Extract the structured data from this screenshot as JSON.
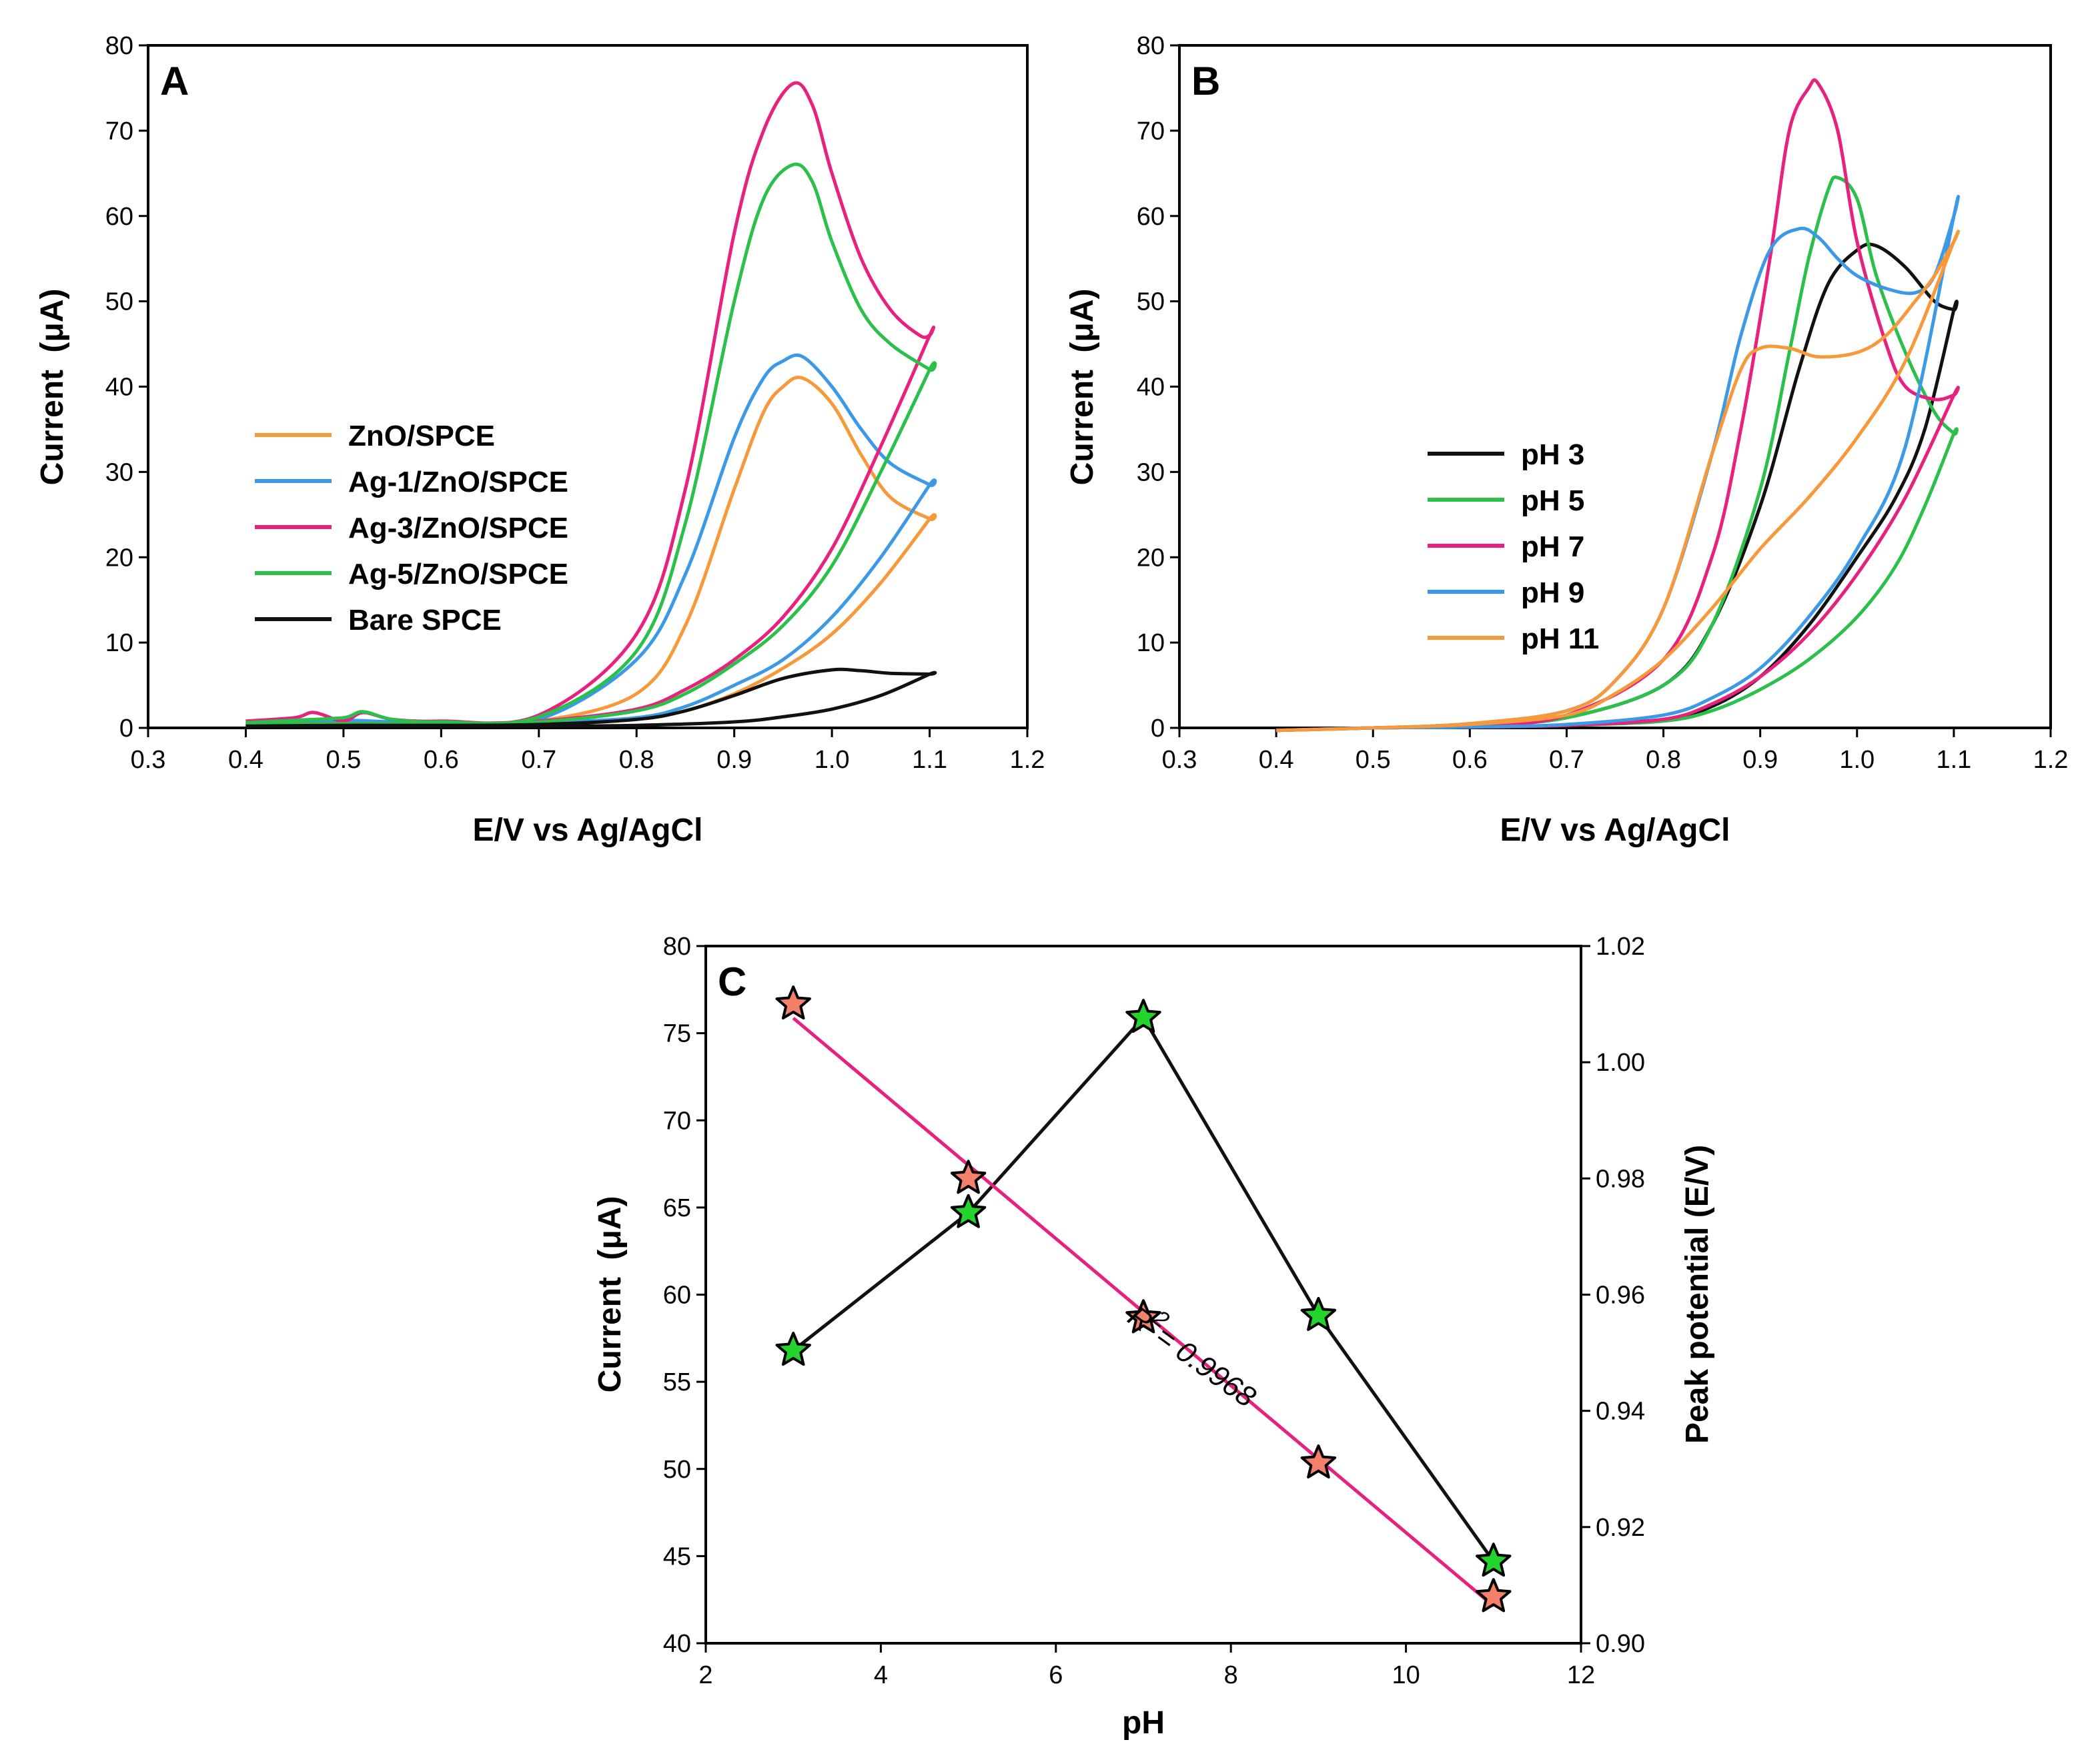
{
  "chart_data": [
    {
      "panel": "A",
      "type": "line",
      "title": "",
      "xlabel": "E/V vs Ag/AgCl",
      "ylabel_main": "Current",
      "ylabel_unit": "(μA)",
      "xlim": [
        0.3,
        1.2
      ],
      "ylim": [
        0,
        80
      ],
      "xticks": [
        "0.3",
        "0.4",
        "0.5",
        "0.6",
        "0.7",
        "0.8",
        "0.9",
        "1.0",
        "1.1",
        "1.2"
      ],
      "yticks": [
        "0",
        "10",
        "20",
        "30",
        "40",
        "50",
        "60",
        "70",
        "80"
      ],
      "legend_position": "center-left",
      "series": [
        {
          "name": "ZnO/SPCE",
          "color": "#f7993a",
          "x": [
            0.4,
            0.45,
            0.5,
            0.55,
            0.6,
            0.7,
            0.8,
            0.85,
            0.9,
            0.93,
            0.95,
            0.97,
            1.0,
            1.03,
            1.06,
            1.1,
            1.1,
            1.05,
            1.0,
            0.95,
            0.9,
            0.85,
            0.8,
            0.7,
            0.6,
            0.5,
            0.4
          ],
          "y": [
            0.4,
            0.6,
            0.8,
            0.6,
            0.5,
            0.8,
            4.0,
            12.0,
            28.0,
            37.0,
            40.0,
            41.0,
            38.0,
            32.0,
            27.0,
            24.5,
            24.5,
            17.0,
            11.0,
            7.0,
            4.0,
            2.0,
            1.0,
            0.5,
            0.3,
            0.3,
            0.3
          ]
        },
        {
          "name": "Ag-1/ZnO/SPCE",
          "color": "#3c99e8",
          "x": [
            0.4,
            0.45,
            0.5,
            0.55,
            0.6,
            0.7,
            0.8,
            0.85,
            0.9,
            0.93,
            0.95,
            0.97,
            1.0,
            1.03,
            1.06,
            1.1,
            1.1,
            1.05,
            1.0,
            0.95,
            0.9,
            0.85,
            0.8,
            0.7,
            0.6,
            0.5,
            0.4
          ],
          "y": [
            0.5,
            0.7,
            0.9,
            0.7,
            0.6,
            1.0,
            8.0,
            18.0,
            34.0,
            41.0,
            43.0,
            43.5,
            40.0,
            35.0,
            31.0,
            28.5,
            28.5,
            20.0,
            13.0,
            8.0,
            5.0,
            2.5,
            1.2,
            0.6,
            0.4,
            0.4,
            0.4
          ]
        },
        {
          "name": "Ag-3/ZnO/SPCE",
          "color": "#e8207e",
          "x": [
            0.4,
            0.45,
            0.47,
            0.5,
            0.52,
            0.55,
            0.6,
            0.7,
            0.8,
            0.85,
            0.9,
            0.93,
            0.96,
            0.98,
            1.0,
            1.03,
            1.06,
            1.09,
            1.1,
            1.1,
            1.05,
            1.0,
            0.95,
            0.9,
            0.85,
            0.8,
            0.7,
            0.6,
            0.5,
            0.4
          ],
          "y": [
            0.8,
            1.2,
            1.8,
            0.8,
            1.8,
            1.0,
            0.8,
            1.5,
            11.0,
            28.0,
            58.0,
            70.0,
            75.5,
            73.0,
            65.0,
            55.0,
            49.0,
            46.0,
            46.0,
            46.0,
            33.0,
            21.0,
            13.0,
            8.0,
            4.5,
            2.2,
            0.8,
            0.5,
            0.5,
            0.5
          ]
        },
        {
          "name": "Ag-5/ZnO/SPCE",
          "color": "#2bc04a",
          "x": [
            0.4,
            0.45,
            0.5,
            0.52,
            0.55,
            0.6,
            0.7,
            0.8,
            0.85,
            0.9,
            0.93,
            0.96,
            0.98,
            1.0,
            1.03,
            1.06,
            1.1,
            1.1,
            1.05,
            1.0,
            0.95,
            0.9,
            0.85,
            0.8,
            0.7,
            0.6,
            0.5,
            0.4
          ],
          "y": [
            0.6,
            0.9,
            1.2,
            1.9,
            1.0,
            0.7,
            1.3,
            9.0,
            24.0,
            50.0,
            62.0,
            66.0,
            64.0,
            57.0,
            49.0,
            45.0,
            42.0,
            42.0,
            30.0,
            19.0,
            12.0,
            7.5,
            4.0,
            2.0,
            0.7,
            0.5,
            0.5,
            0.5
          ]
        },
        {
          "name": "Bare SPCE",
          "color": "#111111",
          "x": [
            0.4,
            0.5,
            0.6,
            0.7,
            0.8,
            0.85,
            0.9,
            0.95,
            1.0,
            1.03,
            1.06,
            1.1,
            1.1,
            1.05,
            1.0,
            0.95,
            0.9,
            0.8,
            0.7,
            0.6,
            0.5,
            0.4
          ],
          "y": [
            0.2,
            0.3,
            0.3,
            0.4,
            1.0,
            2.0,
            3.8,
            5.8,
            6.8,
            6.7,
            6.4,
            6.3,
            6.3,
            3.8,
            2.2,
            1.3,
            0.7,
            0.3,
            0.2,
            0.2,
            0.2,
            0.2
          ]
        }
      ]
    },
    {
      "panel": "B",
      "type": "line",
      "title": "",
      "xlabel": "E/V vs Ag/AgCl",
      "ylabel_main": "Current",
      "ylabel_unit": "(μA)",
      "xlim": [
        0.3,
        1.2
      ],
      "ylim": [
        0,
        80
      ],
      "xticks": [
        "0.3",
        "0.4",
        "0.5",
        "0.6",
        "0.7",
        "0.8",
        "0.9",
        "1.0",
        "1.1",
        "1.2"
      ],
      "yticks": [
        "0",
        "10",
        "20",
        "30",
        "40",
        "50",
        "60",
        "70",
        "80"
      ],
      "legend_position": "center-left",
      "series": [
        {
          "name": "pH 3",
          "color": "#111111",
          "x": [
            0.4,
            0.5,
            0.6,
            0.7,
            0.8,
            0.85,
            0.9,
            0.94,
            0.97,
            1.0,
            1.02,
            1.05,
            1.08,
            1.1,
            1.1,
            1.07,
            1.04,
            1.0,
            0.95,
            0.9,
            0.85,
            0.8,
            0.7,
            0.6,
            0.5,
            0.4
          ],
          "y": [
            -0.3,
            0.0,
            0.3,
            1.2,
            5.0,
            12.0,
            26.0,
            42.0,
            52.0,
            56.0,
            56.5,
            54.0,
            50.0,
            49.0,
            49.0,
            35.0,
            27.0,
            20.0,
            12.0,
            6.0,
            2.5,
            1.0,
            0.3,
            0.1,
            0.0,
            -0.3
          ]
        },
        {
          "name": "pH 5",
          "color": "#2bc04a",
          "x": [
            0.4,
            0.5,
            0.6,
            0.7,
            0.8,
            0.85,
            0.9,
            0.93,
            0.95,
            0.97,
            0.98,
            1.0,
            1.02,
            1.05,
            1.08,
            1.1,
            1.1,
            1.07,
            1.04,
            1.0,
            0.95,
            0.9,
            0.85,
            0.8,
            0.7,
            0.6,
            0.5,
            0.4
          ],
          "y": [
            -0.3,
            0.0,
            0.3,
            1.2,
            5.0,
            12.0,
            28.0,
            44.0,
            55.0,
            63.0,
            64.5,
            62.0,
            53.0,
            44.0,
            37.0,
            34.5,
            34.5,
            26.0,
            19.0,
            13.0,
            8.0,
            4.5,
            2.0,
            0.8,
            0.3,
            0.1,
            0.0,
            -0.3
          ]
        },
        {
          "name": "pH 7",
          "color": "#e8207e",
          "x": [
            0.4,
            0.5,
            0.6,
            0.7,
            0.8,
            0.85,
            0.88,
            0.91,
            0.93,
            0.95,
            0.96,
            0.98,
            1.0,
            1.03,
            1.05,
            1.08,
            1.1,
            1.1,
            1.05,
            1.0,
            0.95,
            0.9,
            0.85,
            0.8,
            0.7,
            0.6,
            0.5,
            0.4
          ],
          "y": [
            -0.3,
            0.0,
            0.3,
            1.5,
            8.0,
            20.0,
            35.0,
            55.0,
            70.0,
            75.0,
            75.5,
            70.0,
            57.0,
            45.0,
            40.0,
            38.5,
            39.0,
            39.0,
            27.0,
            18.0,
            11.0,
            6.0,
            2.8,
            1.0,
            0.3,
            0.1,
            0.0,
            -0.3
          ]
        },
        {
          "name": "pH 9",
          "color": "#3c99e8",
          "x": [
            0.4,
            0.5,
            0.6,
            0.7,
            0.75,
            0.8,
            0.85,
            0.88,
            0.91,
            0.94,
            0.96,
            0.98,
            1.0,
            1.03,
            1.06,
            1.08,
            1.1,
            1.1,
            1.05,
            1.0,
            0.95,
            0.9,
            0.85,
            0.8,
            0.7,
            0.6,
            0.5,
            0.4
          ],
          "y": [
            -0.3,
            0.0,
            0.5,
            2.0,
            5.5,
            14.0,
            32.0,
            46.0,
            56.0,
            58.5,
            57.5,
            55.0,
            53.0,
            51.5,
            51.0,
            53.0,
            60.0,
            60.0,
            33.0,
            21.0,
            13.0,
            7.0,
            3.5,
            1.5,
            0.4,
            0.1,
            0.0,
            -0.3
          ]
        },
        {
          "name": "pH 11",
          "color": "#f7993a",
          "x": [
            0.4,
            0.5,
            0.6,
            0.7,
            0.75,
            0.8,
            0.85,
            0.88,
            0.9,
            0.93,
            0.96,
            1.0,
            1.03,
            1.06,
            1.08,
            1.1,
            1.1,
            1.05,
            1.0,
            0.95,
            0.9,
            0.85,
            0.8,
            0.75,
            0.7,
            0.6,
            0.5,
            0.4
          ],
          "y": [
            -0.3,
            0.0,
            0.5,
            2.0,
            5.5,
            14.0,
            32.0,
            42.0,
            44.5,
            44.5,
            43.5,
            44.0,
            46.0,
            50.0,
            53.0,
            57.0,
            57.0,
            43.0,
            34.0,
            27.0,
            21.0,
            14.0,
            8.0,
            4.0,
            1.5,
            0.4,
            0.0,
            -0.3
          ]
        }
      ]
    },
    {
      "panel": "C",
      "type": "scatter",
      "title": "",
      "xlabel": "pH",
      "ylabel": "Current (μA)",
      "ylabel_main": "Current",
      "ylabel_unit": "(μA)",
      "y2label": "Peak potential (E/V)",
      "xlim": [
        2,
        12
      ],
      "ylim": [
        40,
        80
      ],
      "y2lim": [
        0.9,
        1.02
      ],
      "xticks": [
        "2",
        "4",
        "6",
        "8",
        "10",
        "12"
      ],
      "yticks": [
        "40",
        "45",
        "50",
        "55",
        "60",
        "65",
        "70",
        "75",
        "80"
      ],
      "y2ticks": [
        "0.90",
        "0.92",
        "0.94",
        "0.96",
        "0.98",
        "1.00",
        "1.02"
      ],
      "series": [
        {
          "name": "Current",
          "axis": "left",
          "line_color": "#111111",
          "marker_fill": "#23d42c",
          "marker": "star",
          "x": [
            3,
            5,
            7,
            9,
            11
          ],
          "y": [
            56.8,
            64.7,
            75.9,
            58.8,
            44.7
          ]
        },
        {
          "name": "Peak potential",
          "axis": "right",
          "line_color": "#e8207e",
          "marker_fill": "#f47f6a",
          "marker": "star",
          "x": [
            3,
            5,
            7,
            9,
            11
          ],
          "y": [
            1.01,
            0.98,
            0.956,
            0.931,
            0.908
          ]
        }
      ],
      "annotation": {
        "prefix": "R",
        "superscript": "2",
        "suffix": "= 0.9968",
        "x": 6.8,
        "y": 58.5
      }
    }
  ],
  "panel_labels": [
    "A",
    "B",
    "C"
  ]
}
